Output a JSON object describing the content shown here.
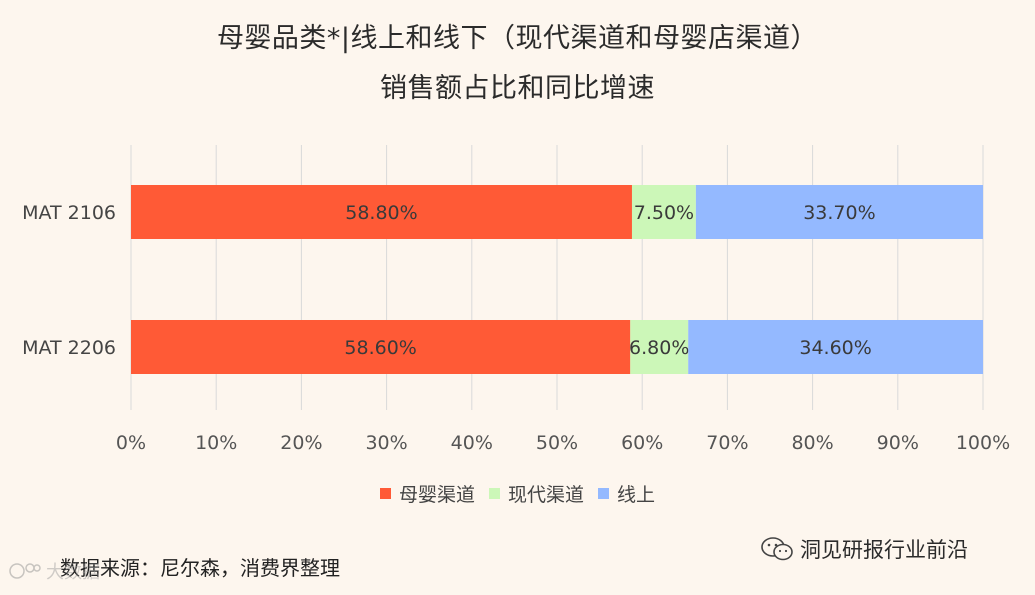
{
  "chart_data": {
    "type": "bar",
    "orientation": "horizontal",
    "stacked": true,
    "title_line1": "母婴品类*|线上和线下（现代渠道和母婴店渠道）",
    "title_line2": "销售额占比和同比增速",
    "categories": [
      "MAT 2106",
      "MAT 2206"
    ],
    "series": [
      {
        "name": "母婴渠道",
        "color": "#ff5a36",
        "values": [
          58.8,
          58.6
        ],
        "labels": [
          "58.80%",
          "58.60%"
        ]
      },
      {
        "name": "现代渠道",
        "color": "#ccf7b8",
        "values": [
          7.5,
          6.8
        ],
        "labels": [
          "7.50%",
          "6.80%"
        ]
      },
      {
        "name": "线上",
        "color": "#94b9ff",
        "values": [
          33.7,
          34.6
        ],
        "labels": [
          "33.70%",
          "34.60%"
        ]
      }
    ],
    "xlim": [
      0,
      100
    ],
    "x_ticks": [
      "0%",
      "10%",
      "20%",
      "30%",
      "40%",
      "50%",
      "60%",
      "70%",
      "80%",
      "90%",
      "100%"
    ],
    "grid": "vertical",
    "legend_position": "bottom"
  },
  "source_text": "数据来源：尼尔森，消费界整理",
  "watermark_right": "洞见研报行业前沿",
  "watermark_left": "大数据",
  "watermark_right_icon": "wechat-icon",
  "watermark_left_icon": "logo-icon"
}
